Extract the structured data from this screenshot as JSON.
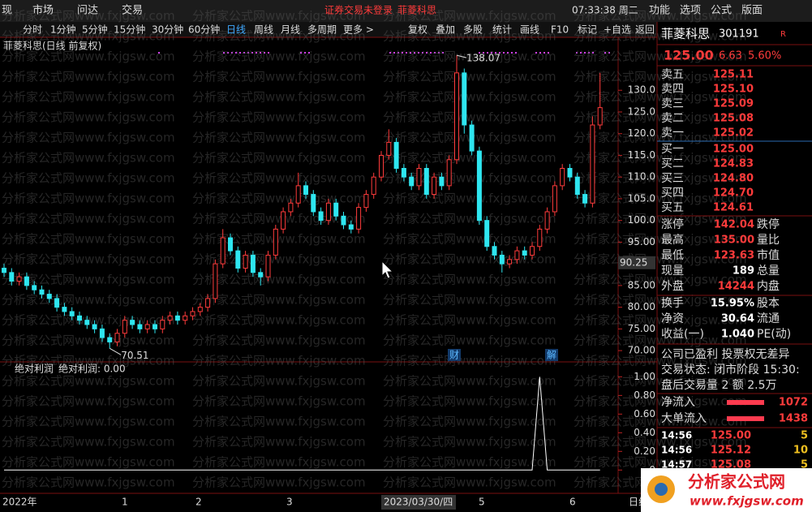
{
  "menu": {
    "items": [
      "现",
      "市场",
      "问达",
      "交易"
    ],
    "notice": "证券交易未登录",
    "stock": "菲菱科思",
    "clock": "07:33:38 周二",
    "right": [
      "功能",
      "选项",
      "公式",
      "版面"
    ]
  },
  "toolbar": {
    "periods": [
      "分时",
      "1分钟",
      "5分钟",
      "15分钟",
      "30分钟",
      "60分钟",
      "日线",
      "周线",
      "月线",
      "多周期",
      "更多 >"
    ],
    "tools": [
      "复权",
      "叠加",
      "多股",
      "统计",
      "画线",
      "F10",
      "标记",
      "+自选",
      "返回"
    ]
  },
  "watermark": "分析家公式网www.fxjgsw.com",
  "chart_data": {
    "type": "candlestick",
    "title": "菲菱科思(日线 前复权)",
    "open": [
      89,
      88,
      86,
      87,
      85,
      84,
      83,
      82,
      80,
      79,
      78,
      77,
      76,
      75,
      73,
      72,
      74,
      77,
      76,
      75,
      76,
      75,
      77,
      78,
      77,
      78,
      79,
      80,
      82,
      90,
      96,
      93,
      89,
      92,
      88,
      87,
      92,
      98,
      102,
      104,
      108,
      106,
      102,
      100,
      104,
      101,
      99,
      98,
      103,
      106,
      110,
      115,
      118,
      112,
      110,
      108,
      112,
      106,
      110,
      108,
      114,
      134,
      122,
      116,
      100,
      94,
      92,
      90,
      91,
      93,
      92,
      94,
      98,
      102,
      108,
      112,
      110,
      106,
      104,
      122
    ],
    "high": [
      90,
      89,
      88,
      88,
      86,
      85,
      84,
      83,
      81,
      80,
      79,
      78,
      77,
      76,
      74,
      75,
      78,
      78,
      77,
      77,
      77,
      78,
      79,
      79,
      79,
      80,
      81,
      83,
      91,
      98,
      97,
      94,
      93,
      93,
      89,
      93,
      99,
      103,
      105,
      111,
      109,
      107,
      103,
      105,
      105,
      102,
      100,
      104,
      107,
      111,
      116,
      121,
      119,
      113,
      111,
      113,
      113,
      111,
      111,
      115,
      138.07,
      135,
      123,
      117,
      101,
      95,
      93,
      92,
      94,
      94,
      95,
      99,
      103,
      109,
      113,
      113,
      111,
      107,
      124,
      134
    ],
    "low": [
      87,
      85,
      85,
      84,
      83,
      82,
      81,
      79,
      78,
      77,
      76,
      75,
      74,
      72,
      70.51,
      71,
      73,
      75,
      74,
      74,
      74,
      74,
      76,
      76,
      76,
      77,
      78,
      79,
      81,
      89,
      92,
      88,
      88,
      87,
      85,
      86,
      91,
      97,
      101,
      103,
      105,
      101,
      99,
      99,
      100,
      98,
      97,
      97,
      102,
      105,
      109,
      114,
      111,
      109,
      107,
      107,
      105,
      105,
      107,
      107,
      113,
      120,
      115,
      99,
      93,
      91,
      88,
      89,
      90,
      91,
      91,
      93,
      97,
      101,
      107,
      109,
      105,
      103,
      103,
      121
    ],
    "close": [
      88,
      86,
      87,
      85,
      84,
      83,
      82,
      80,
      79,
      78,
      77,
      76,
      75,
      73,
      72,
      74,
      77,
      76,
      75,
      76,
      75,
      77,
      78,
      77,
      78,
      79,
      80,
      82,
      90,
      96,
      93,
      89,
      92,
      88,
      87,
      92,
      98,
      102,
      104,
      108,
      106,
      102,
      100,
      104,
      101,
      99,
      98,
      103,
      106,
      110,
      115,
      118,
      112,
      110,
      108,
      112,
      106,
      110,
      108,
      114,
      134,
      122,
      116,
      100,
      94,
      92,
      90,
      91,
      93,
      92,
      94,
      98,
      102,
      108,
      112,
      110,
      106,
      104,
      122,
      126
    ],
    "up_color": "#ff3b3b",
    "down_color": "#2ee6f0",
    "ylim": [
      67.4,
      142.2
    ],
    "yticks": [
      {
        "value": 130,
        "label": "130.0"
      },
      {
        "value": 125,
        "label": "125.0"
      },
      {
        "value": 120,
        "label": "120.0"
      },
      {
        "value": 115,
        "label": "115.0"
      },
      {
        "value": 110,
        "label": "110.0"
      },
      {
        "value": 105,
        "label": "105.0"
      },
      {
        "value": 100,
        "label": "100.0"
      },
      {
        "value": 95,
        "label": "95.00"
      },
      {
        "value": 90,
        "label": "90.00"
      },
      {
        "value": 85,
        "label": "85.00"
      },
      {
        "value": 80,
        "label": "80.00"
      },
      {
        "value": 75,
        "label": "75.00"
      },
      {
        "value": 70,
        "label": "70.00"
      }
    ],
    "max_label": 138.07,
    "min_label": 70.51,
    "cursor_price": 90.25,
    "events": [
      "财",
      "解"
    ],
    "x_labels": [
      "2022年",
      "1",
      "2",
      "3",
      "2023/03/30/四",
      "5",
      "6",
      "日线"
    ],
    "indicator": {
      "name": "绝对利润",
      "legend": "绝对利润: 0.00",
      "color": "#ffffff",
      "ylim": [
        -0.25,
        1.16
      ],
      "yticks": [
        {
          "value": 1,
          "label": "1.00"
        },
        {
          "value": 0.8,
          "label": "0.80"
        },
        {
          "value": 0.6,
          "label": "0.60"
        },
        {
          "value": 0.4,
          "label": "0.40"
        },
        {
          "value": 0.2,
          "label": "0.20"
        },
        0
      ],
      "values": [
        0,
        0,
        0,
        0,
        0,
        0,
        0,
        0,
        0,
        0,
        0,
        0,
        0,
        0,
        0,
        0,
        0,
        0,
        0,
        0,
        0,
        0,
        0,
        0,
        0,
        0,
        0,
        0,
        0,
        0,
        0,
        0,
        0,
        0,
        0,
        0,
        0,
        0,
        0,
        0,
        0,
        0,
        0,
        0,
        0,
        0,
        0,
        0,
        0,
        0,
        0,
        0,
        0,
        0,
        0,
        0,
        0,
        0,
        0,
        0,
        0,
        0,
        0,
        0,
        0,
        0,
        0,
        0,
        0,
        0,
        0,
        1,
        0,
        0,
        0,
        0,
        0,
        0,
        0,
        0
      ]
    }
  },
  "panel": {
    "name": "菲菱科思",
    "code": "301191",
    "badge": "R",
    "price": "125.00",
    "change": "6.63",
    "pct": "5.60%",
    "book": [
      [
        "卖五",
        "125.11"
      ],
      [
        "卖四",
        "125.10"
      ],
      [
        "卖三",
        "125.09"
      ],
      [
        "卖二",
        "125.08"
      ],
      [
        "卖一",
        "125.02"
      ],
      [
        "买一",
        "125.00"
      ],
      [
        "买二",
        "124.83"
      ],
      [
        "买三",
        "124.80"
      ],
      [
        "买四",
        "124.70"
      ],
      [
        "买五",
        "124.61"
      ]
    ],
    "stats": [
      [
        "涨停",
        "142.04",
        "跌停"
      ],
      [
        "最高",
        "135.00",
        "量比"
      ],
      [
        "最低",
        "123.63",
        "市值"
      ],
      [
        "现量",
        "189",
        "总量"
      ],
      [
        "外盘",
        "14244",
        "内盘"
      ],
      [
        "换手",
        "15.95%",
        "股本"
      ],
      [
        "净资",
        "30.64",
        "流通"
      ],
      [
        "收益(一)",
        "1.040",
        "PE(动)"
      ]
    ],
    "lines": [
      "公司已盈利 投票权无差异",
      "交易状态: 闭市阶段 15:30:",
      "盘后交易量 2 额 2.5万"
    ],
    "flows": [
      [
        "净流入",
        "1072"
      ],
      [
        "大单流入",
        "1438"
      ]
    ],
    "ticks": [
      [
        "14:56",
        "125.00",
        "5"
      ],
      [
        "14:56",
        "125.12",
        "10"
      ],
      [
        "14:57",
        "125.08",
        "5"
      ]
    ]
  },
  "logo": {
    "name": "分析家公式网",
    "url": "www.fxjgsw.com"
  }
}
